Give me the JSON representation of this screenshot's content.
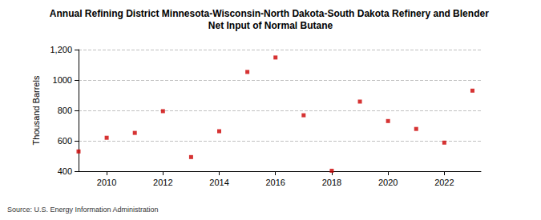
{
  "chart_data": {
    "type": "scatter",
    "title": "Annual Refining District Minnesota-Wisconsin-North Dakota-South Dakota Refinery and Blender Net Input of Normal Butane",
    "y_label": "Thousand Barrels",
    "source": "Source: U.S. Energy Information Administration",
    "x": [
      2009,
      2010,
      2011,
      2012,
      2013,
      2014,
      2015,
      2016,
      2017,
      2018,
      2019,
      2020,
      2021,
      2022,
      2023
    ],
    "values": [
      530,
      620,
      652,
      795,
      493,
      663,
      1053,
      1148,
      768,
      403,
      858,
      730,
      678,
      588,
      930
    ],
    "color": "#cc0000",
    "marker": "square",
    "xlim": [
      2009,
      2023.3
    ],
    "xticks": [
      2010,
      2012,
      2014,
      2016,
      2018,
      2020,
      2022
    ],
    "ylim": [
      400,
      1200
    ],
    "yticks": [
      400,
      600,
      800,
      1000,
      {
        "value": 1200,
        "label": "1,200"
      }
    ],
    "grid": true
  }
}
